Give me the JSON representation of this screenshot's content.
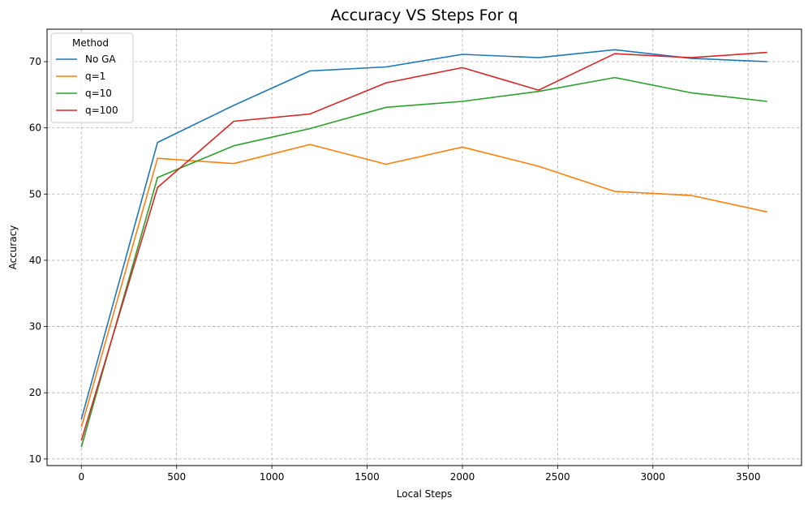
{
  "chart_data": {
    "type": "line",
    "title": "Accuracy VS Steps For q",
    "xlabel": "Local Steps",
    "ylabel": "Accuracy",
    "xlim": [
      -180,
      3780
    ],
    "ylim": [
      9,
      74.9
    ],
    "xticks": [
      0,
      500,
      1000,
      1500,
      2000,
      2500,
      3000,
      3500
    ],
    "yticks": [
      10,
      20,
      30,
      40,
      50,
      60,
      70
    ],
    "grid": true,
    "legend": {
      "title": "Method",
      "placement": "top-left"
    },
    "x": [
      0,
      400,
      800,
      1200,
      1600,
      2000,
      2400,
      2800,
      3200,
      3600
    ],
    "series": [
      {
        "name": "No GA",
        "color": "#1f77b4",
        "values": [
          16.0,
          57.8,
          63.4,
          68.6,
          69.2,
          71.1,
          70.6,
          71.8,
          70.5,
          70.0
        ]
      },
      {
        "name": "q=1",
        "color": "#ff7f0e",
        "values": [
          14.8,
          55.4,
          54.6,
          57.5,
          54.5,
          57.1,
          54.2,
          50.4,
          49.8,
          47.3
        ]
      },
      {
        "name": "q=10",
        "color": "#2ca02c",
        "values": [
          11.8,
          52.5,
          57.3,
          59.9,
          63.1,
          64.0,
          65.5,
          67.6,
          65.3,
          64.0
        ]
      },
      {
        "name": "q=100",
        "color": "#d62728",
        "values": [
          12.8,
          51.0,
          61.0,
          62.1,
          66.8,
          69.1,
          65.7,
          71.2,
          70.6,
          71.4
        ]
      }
    ]
  }
}
